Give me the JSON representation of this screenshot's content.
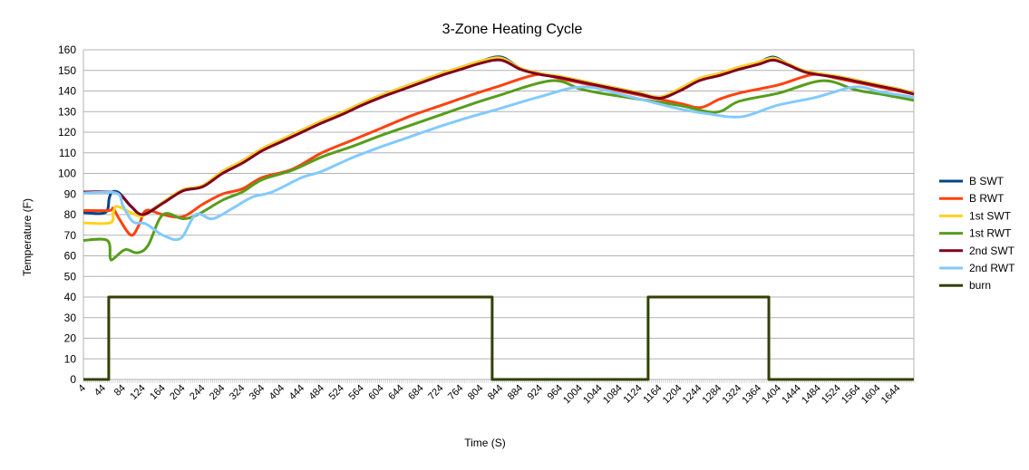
{
  "chart_data": {
    "type": "line",
    "title": "3-Zone Heating Cycle",
    "xlabel": "Time (S)",
    "ylabel": "Temperature (F)",
    "xlim": [
      4,
      1676
    ],
    "ylim": [
      0,
      160
    ],
    "yticks": [
      0,
      10,
      20,
      30,
      40,
      50,
      60,
      70,
      80,
      90,
      100,
      110,
      120,
      130,
      140,
      150,
      160
    ],
    "xticks": [
      4,
      44,
      84,
      124,
      164,
      204,
      244,
      284,
      324,
      364,
      404,
      444,
      484,
      524,
      564,
      604,
      644,
      684,
      724,
      764,
      804,
      844,
      884,
      924,
      964,
      1004,
      1044,
      1084,
      1124,
      1164,
      1204,
      1244,
      1284,
      1324,
      1364,
      1404,
      1444,
      1484,
      1524,
      1564,
      1604,
      1644
    ],
    "grid": true,
    "legend_position": "right",
    "series": [
      {
        "name": "B SWT",
        "color": "#004586",
        "points": [
          [
            4,
            81
          ],
          [
            48,
            81
          ],
          [
            56,
            88
          ],
          [
            62,
            91
          ],
          [
            76,
            90.5
          ],
          [
            100,
            84
          ],
          [
            124,
            80
          ],
          [
            164,
            86
          ],
          [
            204,
            92
          ],
          [
            244,
            94
          ],
          [
            284,
            101
          ],
          [
            324,
            106
          ],
          [
            364,
            112
          ],
          [
            404,
            116.5
          ],
          [
            444,
            121
          ],
          [
            484,
            125.5
          ],
          [
            524,
            129.5
          ],
          [
            564,
            134
          ],
          [
            604,
            138
          ],
          [
            644,
            141.5
          ],
          [
            684,
            145
          ],
          [
            724,
            148.5
          ],
          [
            764,
            151.5
          ],
          [
            804,
            154.5
          ],
          [
            845,
            156.5
          ],
          [
            884,
            151
          ],
          [
            924,
            148.5
          ],
          [
            964,
            147
          ],
          [
            1004,
            145
          ],
          [
            1044,
            143
          ],
          [
            1084,
            141
          ],
          [
            1124,
            139
          ],
          [
            1165,
            137
          ],
          [
            1204,
            141
          ],
          [
            1244,
            146
          ],
          [
            1284,
            148.5
          ],
          [
            1324,
            151.5
          ],
          [
            1364,
            154
          ],
          [
            1393,
            156.5
          ],
          [
            1424,
            153
          ],
          [
            1460,
            149.5
          ],
          [
            1524,
            147
          ],
          [
            1564,
            145
          ],
          [
            1604,
            143
          ],
          [
            1644,
            141
          ],
          [
            1676,
            139
          ]
        ]
      },
      {
        "name": "B RWT",
        "color": "#ff420e",
        "points": [
          [
            4,
            82
          ],
          [
            56,
            82
          ],
          [
            64,
            83
          ],
          [
            76,
            78
          ],
          [
            100,
            70
          ],
          [
            116,
            75
          ],
          [
            130,
            82
          ],
          [
            164,
            80
          ],
          [
            204,
            79
          ],
          [
            244,
            85
          ],
          [
            284,
            90
          ],
          [
            324,
            92.5
          ],
          [
            364,
            98
          ],
          [
            424,
            102
          ],
          [
            484,
            110
          ],
          [
            544,
            116
          ],
          [
            604,
            122
          ],
          [
            664,
            128
          ],
          [
            724,
            133
          ],
          [
            784,
            138
          ],
          [
            836,
            142
          ],
          [
            918,
            148
          ],
          [
            964,
            146
          ],
          [
            1044,
            142
          ],
          [
            1124,
            138
          ],
          [
            1204,
            134
          ],
          [
            1247,
            132
          ],
          [
            1284,
            136
          ],
          [
            1324,
            139
          ],
          [
            1404,
            143
          ],
          [
            1473,
            148
          ],
          [
            1524,
            146
          ],
          [
            1604,
            142
          ],
          [
            1676,
            138.5
          ]
        ]
      },
      {
        "name": "1st SWT",
        "color": "#ffd320",
        "points": [
          [
            4,
            76
          ],
          [
            58,
            76
          ],
          [
            64,
            81
          ],
          [
            72,
            84
          ],
          [
            100,
            81
          ],
          [
            124,
            79.5
          ],
          [
            164,
            86
          ],
          [
            204,
            92
          ],
          [
            244,
            94
          ],
          [
            284,
            101
          ],
          [
            324,
            106
          ],
          [
            364,
            112
          ],
          [
            404,
            116.5
          ],
          [
            444,
            121
          ],
          [
            484,
            125.5
          ],
          [
            524,
            129.5
          ],
          [
            564,
            134
          ],
          [
            604,
            138
          ],
          [
            644,
            141.5
          ],
          [
            684,
            145
          ],
          [
            724,
            148.5
          ],
          [
            764,
            151.5
          ],
          [
            804,
            154.5
          ],
          [
            845,
            156
          ],
          [
            884,
            151
          ],
          [
            924,
            148.5
          ],
          [
            964,
            147
          ],
          [
            1004,
            145
          ],
          [
            1044,
            143
          ],
          [
            1084,
            141
          ],
          [
            1124,
            139
          ],
          [
            1165,
            137
          ],
          [
            1204,
            141
          ],
          [
            1244,
            146
          ],
          [
            1284,
            148.5
          ],
          [
            1324,
            151.5
          ],
          [
            1364,
            154
          ],
          [
            1393,
            156
          ],
          [
            1424,
            153
          ],
          [
            1460,
            149.5
          ],
          [
            1524,
            147
          ],
          [
            1564,
            145
          ],
          [
            1604,
            143
          ],
          [
            1644,
            141
          ],
          [
            1676,
            139
          ]
        ]
      },
      {
        "name": "1st RWT",
        "color": "#579d1c",
        "points": [
          [
            4,
            67.5
          ],
          [
            52,
            67.5
          ],
          [
            58,
            59
          ],
          [
            64,
            58.5
          ],
          [
            88,
            63
          ],
          [
            112,
            61.5
          ],
          [
            134,
            65
          ],
          [
            164,
            80
          ],
          [
            204,
            78
          ],
          [
            234,
            80
          ],
          [
            284,
            87
          ],
          [
            324,
            91
          ],
          [
            364,
            97
          ],
          [
            424,
            101.5
          ],
          [
            484,
            108
          ],
          [
            544,
            113
          ],
          [
            604,
            118.5
          ],
          [
            664,
            123.5
          ],
          [
            724,
            128.5
          ],
          [
            784,
            133.5
          ],
          [
            836,
            137.5
          ],
          [
            946,
            145
          ],
          [
            1004,
            141
          ],
          [
            1044,
            139
          ],
          [
            1124,
            136
          ],
          [
            1204,
            133
          ],
          [
            1278,
            129.7
          ],
          [
            1324,
            135
          ],
          [
            1404,
            139
          ],
          [
            1493,
            145
          ],
          [
            1560,
            140.5
          ],
          [
            1620,
            138
          ],
          [
            1676,
            135.5
          ]
        ]
      },
      {
        "name": "2nd SWT",
        "color": "#7e0021",
        "points": [
          [
            4,
            91
          ],
          [
            70,
            90.5
          ],
          [
            100,
            84
          ],
          [
            124,
            80
          ],
          [
            164,
            85.5
          ],
          [
            204,
            91.5
          ],
          [
            244,
            93.5
          ],
          [
            284,
            100
          ],
          [
            324,
            105
          ],
          [
            364,
            111
          ],
          [
            404,
            115.5
          ],
          [
            444,
            120
          ],
          [
            484,
            124.5
          ],
          [
            524,
            128.5
          ],
          [
            564,
            133
          ],
          [
            604,
            137
          ],
          [
            644,
            140.5
          ],
          [
            684,
            144
          ],
          [
            724,
            147.5
          ],
          [
            764,
            150.5
          ],
          [
            804,
            153.5
          ],
          [
            845,
            155
          ],
          [
            884,
            150.5
          ],
          [
            924,
            148
          ],
          [
            964,
            146.5
          ],
          [
            1004,
            144.5
          ],
          [
            1044,
            142.5
          ],
          [
            1084,
            140.5
          ],
          [
            1124,
            138.5
          ],
          [
            1165,
            136.5
          ],
          [
            1204,
            140
          ],
          [
            1244,
            145
          ],
          [
            1284,
            147.5
          ],
          [
            1324,
            150.5
          ],
          [
            1364,
            153
          ],
          [
            1393,
            155
          ],
          [
            1424,
            152.5
          ],
          [
            1460,
            149
          ],
          [
            1524,
            146.5
          ],
          [
            1564,
            144.5
          ],
          [
            1604,
            142.5
          ],
          [
            1644,
            140.5
          ],
          [
            1676,
            138.5
          ]
        ]
      },
      {
        "name": "2nd RWT",
        "color": "#83caff",
        "points": [
          [
            4,
            90.5
          ],
          [
            70,
            90.5
          ],
          [
            84,
            84
          ],
          [
            104,
            76.5
          ],
          [
            130,
            75.5
          ],
          [
            164,
            70
          ],
          [
            200,
            68.5
          ],
          [
            230,
            80
          ],
          [
            264,
            78
          ],
          [
            304,
            83
          ],
          [
            344,
            88.5
          ],
          [
            384,
            91
          ],
          [
            444,
            98
          ],
          [
            484,
            101
          ],
          [
            544,
            107.5
          ],
          [
            604,
            113
          ],
          [
            664,
            118
          ],
          [
            724,
            123
          ],
          [
            784,
            127.5
          ],
          [
            836,
            131
          ],
          [
            920,
            137
          ],
          [
            1009,
            142
          ],
          [
            1100,
            137.5
          ],
          [
            1200,
            131.5
          ],
          [
            1260,
            129
          ],
          [
            1329,
            127.5
          ],
          [
            1400,
            133
          ],
          [
            1480,
            137
          ],
          [
            1557,
            142
          ],
          [
            1610,
            139.5
          ],
          [
            1676,
            137
          ]
        ]
      },
      {
        "name": "burn",
        "color": "#314004",
        "step": true,
        "points": [
          [
            4,
            0
          ],
          [
            55,
            0
          ],
          [
            55,
            40
          ],
          [
            827,
            40
          ],
          [
            827,
            0
          ],
          [
            1141,
            0
          ],
          [
            1141,
            40
          ],
          [
            1384,
            40
          ],
          [
            1384,
            0
          ],
          [
            1676,
            0
          ]
        ]
      }
    ]
  }
}
